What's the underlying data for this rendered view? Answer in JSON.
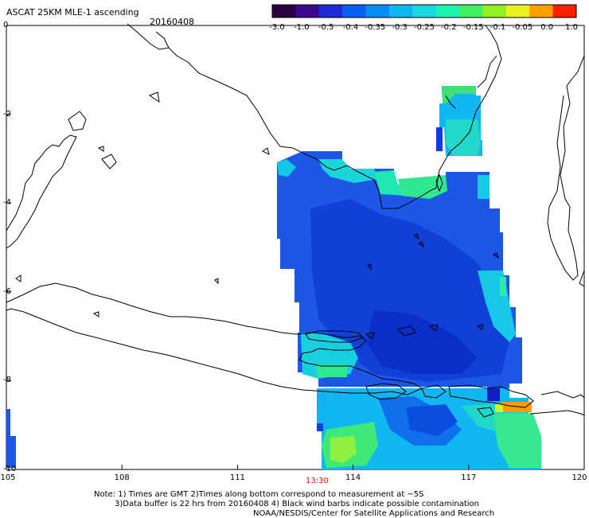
{
  "header": {
    "title": "ASCAT 25KM MLE-1 ascending",
    "date": "20160408"
  },
  "colorbar": {
    "labels": [
      "-3.0",
      "-1.0",
      "-0.5",
      "-0.4",
      "-0.35",
      "-0.3",
      "-0.25",
      "-0.2",
      "-0.15",
      "-0.1",
      "-0.05",
      "0.0",
      "1.0"
    ],
    "colors": [
      "#2a0040",
      "#3b0a8c",
      "#1e2bd6",
      "#0a5ff0",
      "#0a8cf5",
      "#12b6f0",
      "#18d8e0",
      "#20f0b0",
      "#40f060",
      "#90f020",
      "#e8f020",
      "#ffa000",
      "#ff2000"
    ]
  },
  "axes": {
    "x_ticks": [
      "105",
      "108",
      "111",
      "114",
      "117",
      "120"
    ],
    "y_ticks": [
      "0",
      "-2",
      "-4",
      "-6",
      "-8",
      "-10"
    ]
  },
  "time_label": "13:30",
  "footer": {
    "note_line1": "Note: 1) Times are GMT 2)Times along bottom correspond to measurement at ~5S",
    "note_line2": "3)Data buffer is 22 hrs from 20160408 4) Black wind barbs indicate possible contamination",
    "credit": "NOAA/NESDIS/Center for Satellite Applications and Research"
  }
}
